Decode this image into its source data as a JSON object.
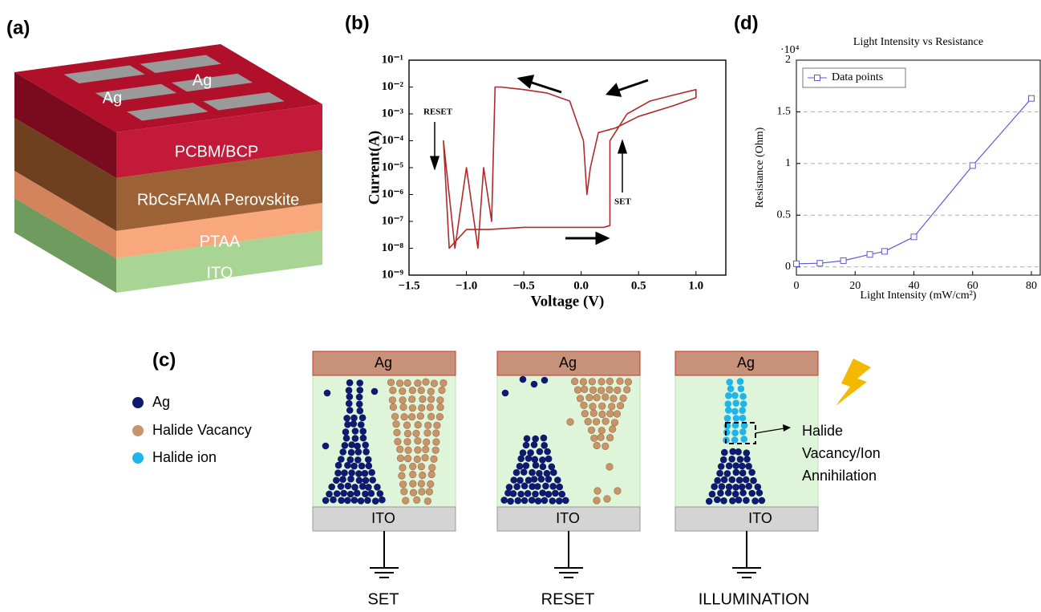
{
  "panel_labels": {
    "a": "(a)",
    "b": "(b)",
    "c": "(c)",
    "d": "(d)"
  },
  "device": {
    "electrodes": [
      "Ag",
      "Ag"
    ],
    "layers": [
      "PCBM/BCP",
      "RbCsFAMA Perovskite",
      "PTAA",
      "ITO"
    ]
  },
  "chart_data": [
    {
      "type": "line",
      "xlabel": "Voltage (V)",
      "ylabel": "Current(A)",
      "annotations": [
        "RESET",
        "SET"
      ],
      "log_y": true,
      "color": "#b02a2a",
      "x": [
        0,
        0.1,
        0.2,
        0.25,
        0.25,
        0.4,
        0.6,
        0.8,
        1.0,
        1.0,
        0.8,
        0.5,
        0.3,
        0.15,
        0.08,
        0.05,
        0.02,
        -0.1,
        -0.3,
        -0.5,
        -0.7,
        -0.75,
        -0.78,
        -0.85,
        -0.9,
        -1.0,
        -1.1,
        -1.2,
        -1.15,
        -1.0,
        -0.8,
        -0.5,
        -0.2,
        0
      ],
      "series": [
        {
          "color": "#b02a2a",
          "values": [
            6e-08,
            6e-08,
            6e-08,
            7e-08,
            0.0001,
            0.001,
            0.003,
            0.005,
            0.008,
            0.004,
            0.002,
            0.0008,
            0.0003,
            0.0002,
            1e-05,
            1e-06,
            0.0001,
            0.003,
            0.006,
            0.008,
            0.01,
            0.01,
            1e-07,
            1e-05,
            1e-08,
            1e-05,
            1e-08,
            0.0001,
            1e-08,
            5e-08,
            5e-08,
            6e-08,
            6e-08,
            6e-08
          ]
        }
      ],
      "xlim": [
        -1.5,
        1.26
      ],
      "ylim": [
        1e-09,
        0.1
      ],
      "xticks": [
        {
          "value": -1.5,
          "label": "−1.5"
        },
        {
          "value": -1,
          "label": "−1.0"
        },
        {
          "value": -0.5,
          "label": "−0.5"
        },
        {
          "value": 0,
          "label": "0.0"
        },
        {
          "value": 0.5,
          "label": "0.5"
        },
        {
          "value": 1,
          "label": "1.0"
        }
      ],
      "yticks": [
        {
          "value": 1e-09,
          "label": "10⁻⁹"
        },
        {
          "value": 1e-08,
          "label": "10⁻⁸"
        },
        {
          "value": 1e-07,
          "label": "10⁻⁷"
        },
        {
          "value": 1e-06,
          "label": "10⁻⁶"
        },
        {
          "value": 1e-05,
          "label": "10⁻⁵"
        },
        {
          "value": 0.0001,
          "label": "10⁻⁴"
        },
        {
          "value": 0.001,
          "label": "10⁻³"
        },
        {
          "value": 0.01,
          "label": "10⁻²"
        },
        {
          "value": 0.1,
          "label": "10⁻¹"
        }
      ]
    },
    {
      "type": "line",
      "title": "Light Intensity vs Resistance",
      "xlabel": "Light Intensity (mW/cm²)",
      "ylabel": "Resistance (Ohm)",
      "y_multiplier": "·10⁴",
      "legend": "upper left",
      "grid": true,
      "marker": "square",
      "x": [
        0,
        8,
        16,
        25,
        30,
        40,
        60,
        80
      ],
      "series": [
        {
          "name": "Data points",
          "color": "#5b5bd6",
          "values": [
            0.03,
            0.035,
            0.06,
            0.12,
            0.15,
            0.29,
            0.98,
            1.63
          ]
        }
      ],
      "xlim": [
        0,
        83
      ],
      "ylim": [
        -0.08,
        2
      ],
      "xticks": [
        0,
        20,
        40,
        60,
        80
      ],
      "yticks": [
        0,
        0.5,
        1,
        1.5,
        2
      ]
    }
  ],
  "mechanism": {
    "legend": [
      "Ag",
      "Halide Vacancy",
      "Halide ion"
    ],
    "cells": [
      {
        "top": "Ag",
        "bottom": "ITO",
        "label": "SET"
      },
      {
        "top": "Ag",
        "bottom": "ITO",
        "label": "RESET"
      },
      {
        "top": "Ag",
        "bottom": "ITO",
        "label": "ILLUMINATION"
      }
    ],
    "annotation": [
      "Halide",
      "Vacancy/Ion",
      "Annihilation"
    ]
  }
}
